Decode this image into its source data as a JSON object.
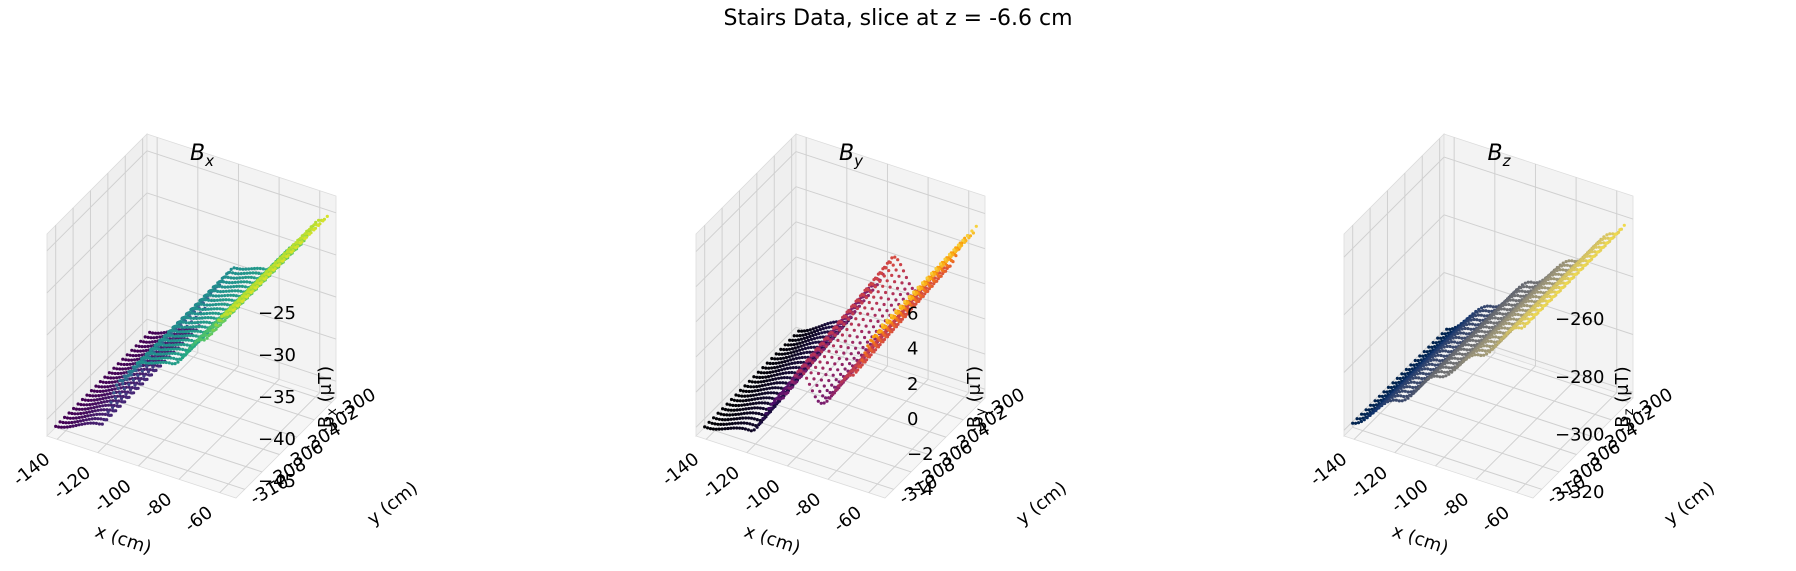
{
  "figure": {
    "title": "Stairs Data, slice at z = -6.6 cm"
  },
  "chart_data": [
    {
      "type": "scatter3d",
      "title": "B_x",
      "title_main": "B",
      "title_sub": "x",
      "xlabel": "x (cm)",
      "ylabel": "y (cm)",
      "zlabel_main": "B",
      "zlabel_sub": "x",
      "zlabel_unit": " (μT)",
      "x_ticks": [
        "-140",
        "-120",
        "-100",
        "-80",
        "-60"
      ],
      "y_ticks": [
        "-310",
        "-308",
        "-306",
        "-304",
        "-302",
        "-300"
      ],
      "z_ticks": [
        "−45",
        "−40",
        "−35",
        "−30",
        "−25"
      ],
      "xlim": [
        -145,
        -52
      ],
      "ylim": [
        -311,
        -299.5
      ],
      "zlim": [
        -47,
        -23
      ],
      "colormap": "viridis",
      "grid": true,
      "surface_profile": {
        "description_units": "field value (μT) at sampled x positions, approximately constant along y",
        "x": [
          -143,
          -120,
          -110,
          -100,
          -85,
          -70,
          -58,
          -50
        ],
        "values": [
          -46,
          -44,
          -38,
          -35,
          -34,
          -30,
          -26,
          -24
        ]
      }
    },
    {
      "type": "scatter3d",
      "title": "B_y",
      "title_main": "B",
      "title_sub": "y",
      "xlabel": "x (cm)",
      "ylabel": "y (cm)",
      "zlabel_main": "B",
      "zlabel_sub": "y",
      "zlabel_unit": " (μT)",
      "x_ticks": [
        "-140",
        "-120",
        "-100",
        "-80",
        "-60"
      ],
      "y_ticks": [
        "-310",
        "-308",
        "-306",
        "-304",
        "-302",
        "-300"
      ],
      "z_ticks": [
        "−4",
        "−2",
        "0",
        "2",
        "4",
        "6"
      ],
      "xlim": [
        -145,
        -52
      ],
      "ylim": [
        -311,
        -299.5
      ],
      "zlim": [
        -4.5,
        7
      ],
      "colormap": "inferno",
      "grid": true,
      "surface_profile": {
        "description_units": "field value (μT) at sampled x positions, approximately constant along y",
        "x": [
          -143,
          -120,
          -105,
          -95,
          -85,
          -70,
          -58,
          -50
        ],
        "values": [
          -4,
          -3,
          -0.5,
          1.5,
          0,
          2,
          4.5,
          6.5
        ]
      }
    },
    {
      "type": "scatter3d",
      "title": "B_z",
      "title_main": "B",
      "title_sub": "z",
      "xlabel": "x (cm)",
      "ylabel": "y (cm)",
      "zlabel_main": "B",
      "zlabel_sub": "z",
      "zlabel_unit": " (μT)",
      "x_ticks": [
        "-140",
        "-120",
        "-100",
        "-80",
        "-60"
      ],
      "y_ticks": [
        "-310",
        "-308",
        "-306",
        "-304",
        "-302",
        "-300"
      ],
      "z_ticks": [
        "−320",
        "−300",
        "−280",
        "−260"
      ],
      "xlim": [
        -145,
        -52
      ],
      "ylim": [
        -311,
        -299.5
      ],
      "zlim": [
        -322,
        -252
      ],
      "colormap": "cividis",
      "grid": true,
      "surface_profile": {
        "description_units": "field value (μT) at sampled x positions, approximately constant along y",
        "x": [
          -143,
          -120,
          -100,
          -80,
          -60,
          -50
        ],
        "values": [
          -318,
          -305,
          -292,
          -280,
          -266,
          -258
        ]
      }
    }
  ]
}
